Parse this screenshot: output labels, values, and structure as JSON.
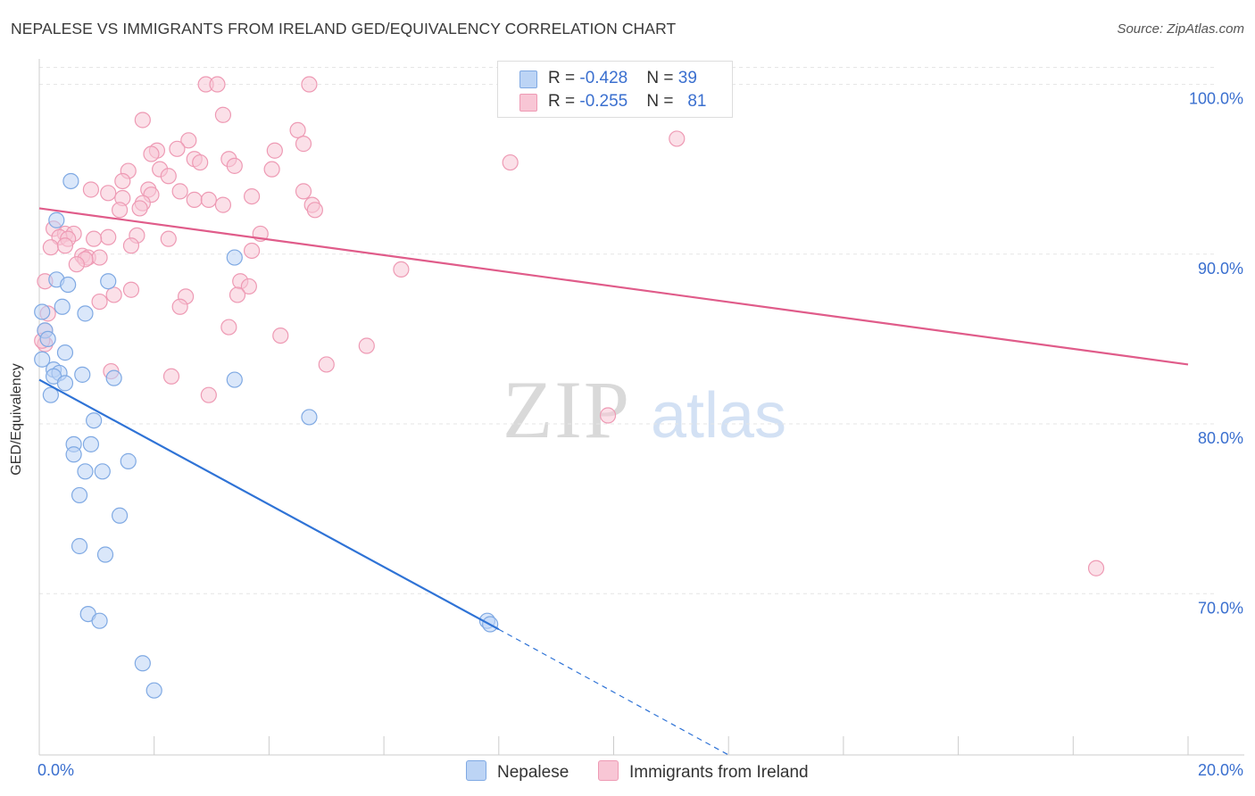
{
  "title": "NEPALESE VS IMMIGRANTS FROM IRELAND GED/EQUIVALENCY CORRELATION CHART",
  "source": "Source: ZipAtlas.com",
  "watermark": {
    "zip": "ZIP",
    "atlas": "atlas"
  },
  "legend": {
    "rows": [
      {
        "r_label": "R = ",
        "r_value": "-0.428",
        "n_label": "N = ",
        "n_value": "39"
      },
      {
        "r_label": "R = ",
        "r_value": "-0.255",
        "n_label": "N = ",
        "n_value": "81"
      }
    ]
  },
  "colors": {
    "nepalese_fill": "#bcd4f5",
    "nepalese_stroke": "#7fa9e3",
    "nepalese_line": "#2f73d6",
    "ireland_fill": "#f8c6d5",
    "ireland_stroke": "#ee9ab4",
    "ireland_line": "#e05c8a",
    "axis_value": "#3a6fcf",
    "grid": "#e6e6e6"
  },
  "chart_data": {
    "type": "scatter",
    "title": "NEPALESE VS IMMIGRANTS FROM IRELAND GED/EQUIVALENCY CORRELATION CHART",
    "xlabel": "",
    "ylabel": "GED/Equivalency",
    "xlim": [
      0,
      20
    ],
    "ylim": [
      60.5,
      101.5
    ],
    "x_tick_labels": [
      "0.0%",
      "20.0%"
    ],
    "y_ticks": [
      70,
      80,
      90,
      100
    ],
    "y_tick_labels": [
      "70.0%",
      "80.0%",
      "90.0%",
      "100.0%"
    ],
    "grid": true,
    "series": [
      {
        "name": "Nepalese",
        "r": -0.428,
        "n": 39,
        "trend": {
          "x0": 0.0,
          "y0": 82.6,
          "x1": 8.0,
          "y1": 67.9,
          "dash_x1": 12.0,
          "dash_y1": 60.5
        },
        "points": [
          [
            0.55,
            94.3
          ],
          [
            0.3,
            92.0
          ],
          [
            0.3,
            88.5
          ],
          [
            0.5,
            88.2
          ],
          [
            1.2,
            88.4
          ],
          [
            0.4,
            86.9
          ],
          [
            0.8,
            86.5
          ],
          [
            0.05,
            86.6
          ],
          [
            0.1,
            85.5
          ],
          [
            0.15,
            85.0
          ],
          [
            0.45,
            84.2
          ],
          [
            0.05,
            83.8
          ],
          [
            0.25,
            83.2
          ],
          [
            0.35,
            83.0
          ],
          [
            0.75,
            82.9
          ],
          [
            0.25,
            82.8
          ],
          [
            1.3,
            82.7
          ],
          [
            0.45,
            82.4
          ],
          [
            0.2,
            81.7
          ],
          [
            3.4,
            89.8
          ],
          [
            3.4,
            82.6
          ],
          [
            4.7,
            80.4
          ],
          [
            0.95,
            80.2
          ],
          [
            0.6,
            78.8
          ],
          [
            0.9,
            78.8
          ],
          [
            0.6,
            78.2
          ],
          [
            1.55,
            77.8
          ],
          [
            0.8,
            77.2
          ],
          [
            1.1,
            77.2
          ],
          [
            0.7,
            75.8
          ],
          [
            1.4,
            74.6
          ],
          [
            0.7,
            72.8
          ],
          [
            1.15,
            72.3
          ],
          [
            0.85,
            68.8
          ],
          [
            1.05,
            68.4
          ],
          [
            7.8,
            68.4
          ],
          [
            7.85,
            68.2
          ],
          [
            1.8,
            65.9
          ],
          [
            2.0,
            64.3
          ]
        ]
      },
      {
        "name": "Immigrants from Ireland",
        "r": -0.255,
        "n": 81,
        "trend": {
          "x0": 0.0,
          "y0": 92.7,
          "x1": 20.0,
          "y1": 83.5
        },
        "points": [
          [
            2.9,
            100.0
          ],
          [
            3.1,
            100.0
          ],
          [
            4.7,
            100.0
          ],
          [
            3.2,
            98.2
          ],
          [
            1.8,
            97.9
          ],
          [
            4.5,
            97.3
          ],
          [
            2.6,
            96.7
          ],
          [
            4.6,
            96.5
          ],
          [
            11.1,
            96.8
          ],
          [
            2.4,
            96.2
          ],
          [
            2.05,
            96.1
          ],
          [
            4.1,
            96.1
          ],
          [
            1.95,
            95.9
          ],
          [
            3.3,
            95.6
          ],
          [
            2.7,
            95.6
          ],
          [
            2.8,
            95.4
          ],
          [
            3.4,
            95.2
          ],
          [
            8.2,
            95.4
          ],
          [
            2.1,
            95.0
          ],
          [
            4.05,
            95.0
          ],
          [
            1.55,
            94.9
          ],
          [
            2.25,
            94.6
          ],
          [
            1.45,
            94.3
          ],
          [
            0.9,
            93.8
          ],
          [
            1.9,
            93.8
          ],
          [
            2.45,
            93.7
          ],
          [
            1.2,
            93.6
          ],
          [
            1.95,
            93.5
          ],
          [
            3.7,
            93.4
          ],
          [
            4.6,
            93.7
          ],
          [
            1.45,
            93.3
          ],
          [
            2.7,
            93.2
          ],
          [
            2.95,
            93.2
          ],
          [
            1.8,
            93.0
          ],
          [
            1.75,
            92.7
          ],
          [
            4.75,
            92.9
          ],
          [
            3.2,
            92.9
          ],
          [
            1.4,
            92.6
          ],
          [
            4.8,
            92.6
          ],
          [
            0.25,
            91.5
          ],
          [
            0.45,
            91.2
          ],
          [
            0.6,
            91.2
          ],
          [
            0.35,
            91.0
          ],
          [
            0.5,
            90.9
          ],
          [
            1.2,
            91.0
          ],
          [
            1.7,
            91.1
          ],
          [
            2.25,
            90.9
          ],
          [
            3.85,
            91.2
          ],
          [
            0.95,
            90.9
          ],
          [
            0.2,
            90.4
          ],
          [
            0.45,
            90.5
          ],
          [
            1.6,
            90.5
          ],
          [
            3.7,
            90.2
          ],
          [
            0.75,
            89.9
          ],
          [
            0.85,
            89.8
          ],
          [
            1.05,
            89.8
          ],
          [
            0.8,
            89.7
          ],
          [
            0.65,
            89.4
          ],
          [
            6.3,
            89.1
          ],
          [
            0.1,
            88.4
          ],
          [
            3.5,
            88.4
          ],
          [
            3.65,
            88.1
          ],
          [
            1.6,
            87.9
          ],
          [
            1.3,
            87.6
          ],
          [
            2.55,
            87.5
          ],
          [
            3.45,
            87.6
          ],
          [
            1.05,
            87.2
          ],
          [
            2.45,
            86.9
          ],
          [
            0.15,
            86.5
          ],
          [
            3.3,
            85.7
          ],
          [
            0.1,
            85.5
          ],
          [
            4.2,
            85.2
          ],
          [
            0.1,
            84.7
          ],
          [
            5.7,
            84.6
          ],
          [
            5.0,
            83.5
          ],
          [
            1.25,
            83.1
          ],
          [
            2.3,
            82.8
          ],
          [
            2.95,
            81.7
          ],
          [
            9.9,
            80.5
          ],
          [
            18.4,
            71.5
          ],
          [
            0.05,
            84.9
          ]
        ]
      }
    ]
  }
}
